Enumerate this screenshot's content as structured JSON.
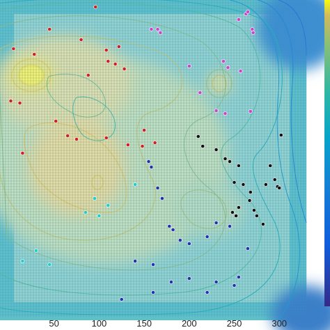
{
  "chart_data": {
    "type": "scatter",
    "description_of_layers": [
      "filled-contour heat surface",
      "contour lines",
      "wireframe grid",
      "colored markers"
    ],
    "xlim": [
      -10,
      330
    ],
    "x_ticks": [
      50,
      100,
      150,
      200,
      250,
      300
    ],
    "x_tick_labels": [
      "50",
      "100",
      "150",
      "200",
      "250",
      "300"
    ],
    "colormap": "parula",
    "colorbar": true,
    "grid": true,
    "series": [
      {
        "color": "#cc2222",
        "points": [
          [
            45,
            42
          ],
          [
            80,
            57
          ],
          [
            96,
            10
          ],
          [
            5,
            70
          ],
          [
            28,
            78
          ],
          [
            110,
            88
          ],
          [
            118,
            92
          ],
          [
            128,
            99
          ],
          [
            88,
            108
          ],
          [
            2,
            145
          ],
          [
            12,
            148
          ],
          [
            52,
            174
          ],
          [
            65,
            195
          ],
          [
            75,
            200
          ],
          [
            108,
            198
          ],
          [
            150,
            187
          ],
          [
            132,
            208
          ],
          [
            148,
            210
          ],
          [
            162,
            205
          ],
          [
            15,
            220
          ],
          [
            108,
            72
          ],
          [
            122,
            67
          ]
        ]
      },
      {
        "color": "#cc44cc",
        "points": [
          [
            158,
            42
          ],
          [
            165,
            42
          ],
          [
            168,
            47
          ],
          [
            200,
            95
          ],
          [
            238,
            88
          ],
          [
            243,
            97
          ],
          [
            212,
            133
          ],
          [
            230,
            159
          ],
          [
            240,
            163
          ],
          [
            268,
            160
          ],
          [
            255,
            28
          ],
          [
            263,
            20
          ],
          [
            265,
            17
          ],
          [
            270,
            42
          ],
          [
            271,
            47
          ],
          [
            257,
            102
          ]
        ]
      },
      {
        "color": "#111111",
        "points": [
          [
            210,
            196
          ],
          [
            215,
            210
          ],
          [
            230,
            215
          ],
          [
            240,
            228
          ],
          [
            245,
            232
          ],
          [
            255,
            238
          ],
          [
            250,
            262
          ],
          [
            260,
            265
          ],
          [
            267,
            288
          ],
          [
            272,
            302
          ],
          [
            275,
            310
          ],
          [
            282,
            322
          ],
          [
            268,
            276
          ],
          [
            255,
            298
          ],
          [
            248,
            305
          ],
          [
            252,
            310
          ],
          [
            302,
            194
          ],
          [
            290,
            238
          ],
          [
            295,
            258
          ],
          [
            285,
            265
          ],
          [
            298,
            268
          ],
          [
            300,
            270
          ]
        ]
      },
      {
        "color": "#2233aa",
        "points": [
          [
            155,
            232
          ],
          [
            158,
            240
          ],
          [
            165,
            270
          ],
          [
            170,
            285
          ],
          [
            178,
            325
          ],
          [
            182,
            330
          ],
          [
            190,
            345
          ],
          [
            200,
            350
          ],
          [
            220,
            340
          ],
          [
            230,
            320
          ],
          [
            245,
            325
          ],
          [
            265,
            357
          ],
          [
            255,
            398
          ],
          [
            250,
            410
          ],
          [
            230,
            405
          ],
          [
            220,
            420
          ],
          [
            200,
            400
          ],
          [
            180,
            405
          ],
          [
            160,
            380
          ],
          [
            140,
            375
          ],
          [
            125,
            430
          ],
          [
            160,
            420
          ]
        ]
      },
      {
        "color": "#22cccc",
        "points": [
          [
            95,
            285
          ],
          [
            110,
            295
          ],
          [
            100,
            310
          ],
          [
            85,
            305
          ],
          [
            140,
            265
          ],
          [
            30,
            360
          ],
          [
            45,
            380
          ],
          [
            15,
            375
          ]
        ]
      }
    ]
  }
}
